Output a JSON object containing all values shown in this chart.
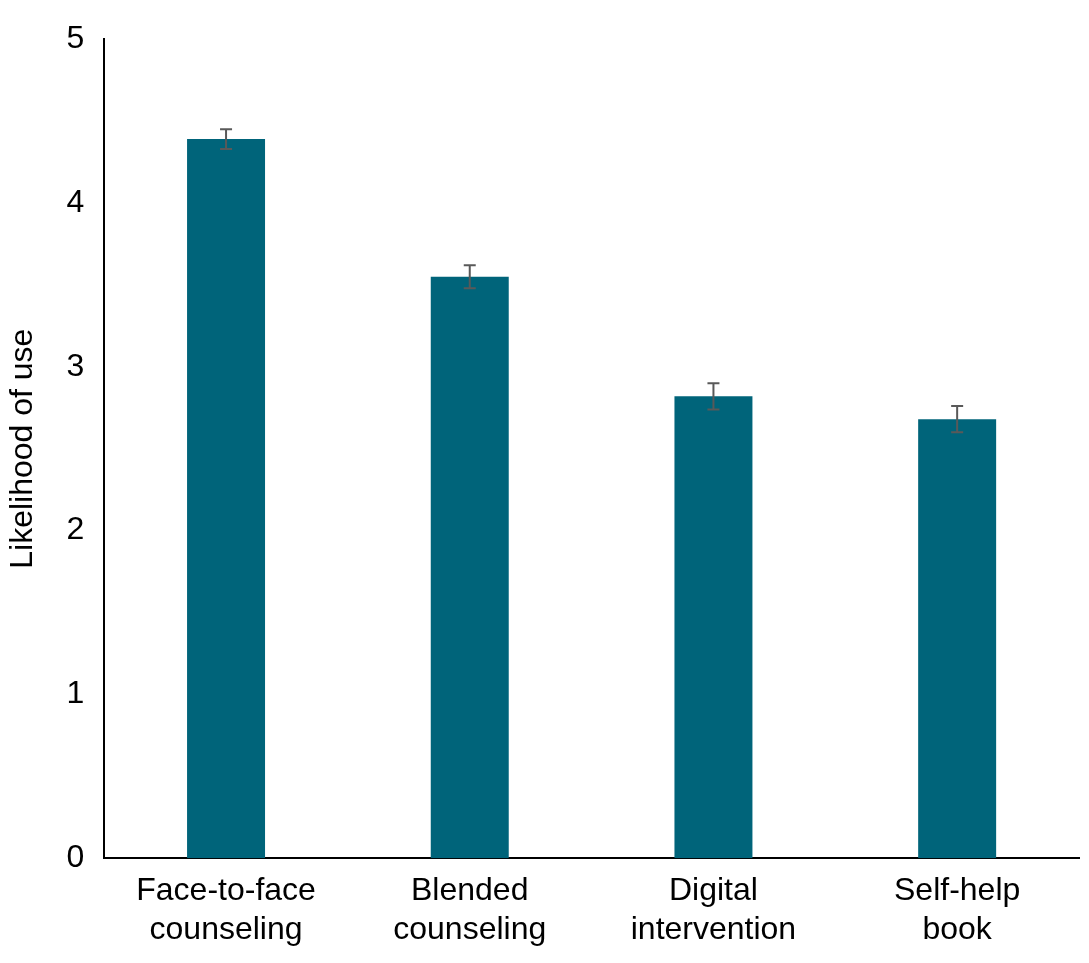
{
  "chart_data": {
    "type": "bar",
    "ylabel": "Likelihood of use",
    "categories": [
      "Face-to-face counseling",
      "Blended counseling",
      "Digital intervention",
      "Self-help book"
    ],
    "values": [
      4.39,
      3.55,
      2.82,
      2.68
    ],
    "errors": [
      0.06,
      0.07,
      0.08,
      0.08
    ],
    "color": "#00647a",
    "ylim": [
      0,
      5
    ],
    "yticks": [
      0,
      1,
      2,
      3,
      4,
      5
    ],
    "grid": false,
    "legend": false
  }
}
